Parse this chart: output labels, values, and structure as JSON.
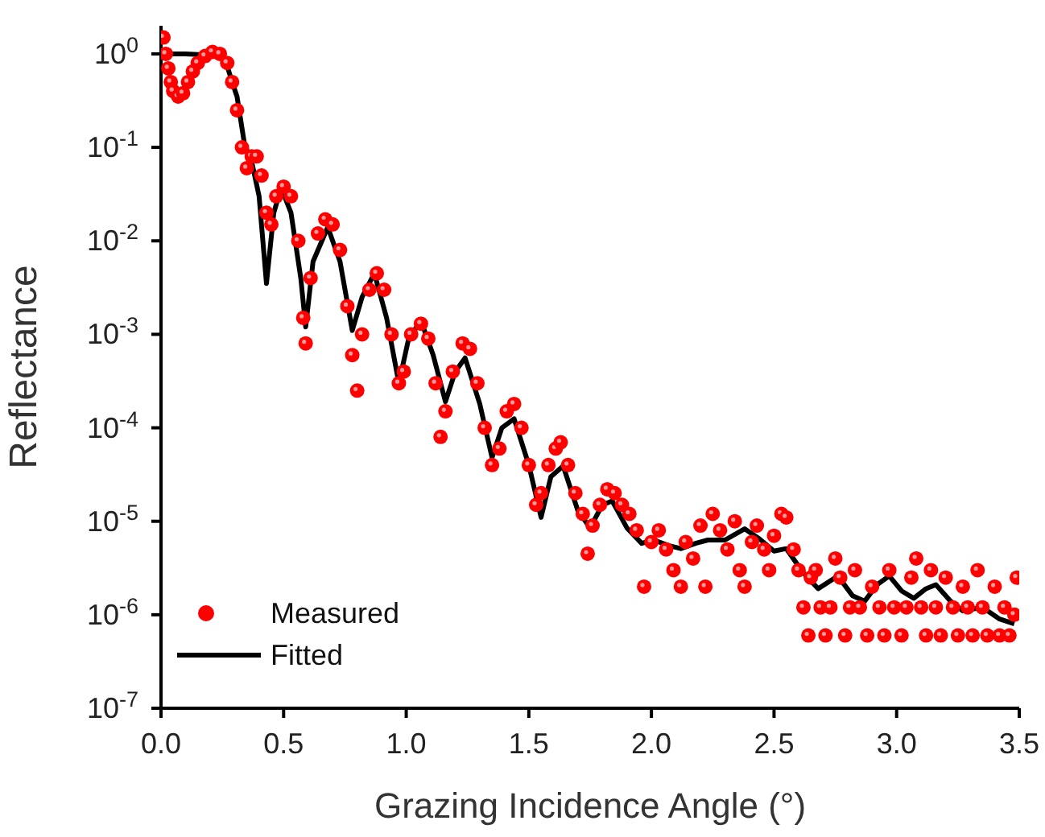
{
  "chart_data": {
    "type": "scatter",
    "xlabel": "Grazing Incidence Angle (°)",
    "ylabel": "Reflectance",
    "log": "y",
    "legend": "bottom left",
    "xlim": [
      0,
      3.5
    ],
    "ylim": [
      1e-07,
      2
    ],
    "xticks": [
      {
        "value": 0,
        "label": "0.0"
      },
      {
        "value": 0.5,
        "label": "0.5"
      },
      {
        "value": 1,
        "label": "1.0"
      },
      {
        "value": 1.5,
        "label": "1.5"
      },
      {
        "value": 2,
        "label": "2.0"
      },
      {
        "value": 2.5,
        "label": "2.5"
      },
      {
        "value": 3,
        "label": "3.0"
      },
      {
        "value": 3.5,
        "label": "3.5"
      }
    ],
    "yticks": [
      {
        "value": 1e-07,
        "label": "10$^{-7}$"
      },
      {
        "value": 1e-06,
        "label": "10$^{-6}$"
      },
      {
        "value": 1e-05,
        "label": "10$^{-5}$"
      },
      {
        "value": 0.0001,
        "label": "10$^{-4}$"
      },
      {
        "value": 0.001,
        "label": "10$^{-3}$"
      },
      {
        "value": 0.01,
        "label": "10$^{-2}$"
      },
      {
        "value": 0.1,
        "label": "10$^{-1}$"
      },
      {
        "value": 1,
        "label": "10$^{0}$"
      }
    ],
    "series": [
      {
        "name": "Measured",
        "marker": "circle",
        "color": "#ff0000",
        "x": [
          0.01,
          0.02,
          0.03,
          0.04,
          0.05,
          0.07,
          0.09,
          0.11,
          0.13,
          0.15,
          0.18,
          0.21,
          0.24,
          0.27,
          0.29,
          0.31,
          0.33,
          0.35,
          0.37,
          0.39,
          0.41,
          0.43,
          0.45,
          0.47,
          0.5,
          0.53,
          0.56,
          0.58,
          0.59,
          0.61,
          0.64,
          0.67,
          0.7,
          0.73,
          0.76,
          0.78,
          0.8,
          0.82,
          0.85,
          0.88,
          0.91,
          0.94,
          0.97,
          0.99,
          1.02,
          1.06,
          1.09,
          1.12,
          1.14,
          1.16,
          1.19,
          1.23,
          1.26,
          1.29,
          1.32,
          1.35,
          1.38,
          1.41,
          1.44,
          1.47,
          1.5,
          1.53,
          1.55,
          1.58,
          1.61,
          1.63,
          1.66,
          1.69,
          1.72,
          1.74,
          1.76,
          1.79,
          1.82,
          1.85,
          1.88,
          1.91,
          1.94,
          1.97,
          2,
          2.03,
          2.06,
          2.09,
          2.12,
          2.14,
          2.17,
          2.2,
          2.22,
          2.25,
          2.28,
          2.31,
          2.34,
          2.36,
          2.38,
          2.41,
          2.43,
          2.46,
          2.48,
          2.5,
          2.53,
          2.55,
          2.58,
          2.6,
          2.62,
          2.64,
          2.65,
          2.67,
          2.69,
          2.71,
          2.73,
          2.75,
          2.77,
          2.79,
          2.81,
          2.83,
          2.85,
          2.88,
          2.9,
          2.93,
          2.95,
          2.97,
          2.99,
          3.02,
          3.04,
          3.06,
          3.08,
          3.1,
          3.12,
          3.14,
          3.16,
          3.18,
          3.2,
          3.23,
          3.25,
          3.27,
          3.29,
          3.31,
          3.33,
          3.35,
          3.37,
          3.4,
          3.42,
          3.44,
          3.46,
          3.48,
          3.49
        ],
        "values": [
          1.5,
          1,
          0.7,
          0.5,
          0.4,
          0.35,
          0.38,
          0.5,
          0.65,
          0.8,
          0.95,
          1.05,
          1,
          0.8,
          0.5,
          0.25,
          0.1,
          0.06,
          0.08,
          0.08,
          0.05,
          0.02,
          0.015,
          0.03,
          0.038,
          0.03,
          0.01,
          0.0015,
          0.0008,
          0.004,
          0.012,
          0.017,
          0.015,
          0.008,
          0.002,
          0.0006,
          0.00025,
          0.001,
          0.003,
          0.0045,
          0.003,
          0.001,
          0.0003,
          0.0004,
          0.001,
          0.0013,
          0.0009,
          0.0003,
          8e-05,
          0.00015,
          0.0004,
          0.0008,
          0.0007,
          0.0003,
          0.0001,
          4e-05,
          6e-05,
          0.00015,
          0.00018,
          0.0001,
          4e-05,
          1.5e-05,
          2e-05,
          4e-05,
          6e-05,
          7e-05,
          4e-05,
          2e-05,
          1.2e-05,
          4.5e-06,
          9e-06,
          1.5e-05,
          2.2e-05,
          2e-05,
          1.5e-05,
          1.2e-05,
          8e-06,
          2e-06,
          6e-06,
          8e-06,
          5e-06,
          3e-06,
          2e-06,
          6e-06,
          4e-06,
          9e-06,
          2e-06,
          1.2e-05,
          8e-06,
          5e-06,
          1e-05,
          3e-06,
          2e-06,
          6e-06,
          9e-06,
          5e-06,
          3e-06,
          7e-06,
          1.2e-05,
          1.1e-05,
          5e-06,
          3e-06,
          1.2e-06,
          6e-07,
          2.5e-06,
          3e-06,
          1.2e-06,
          6e-07,
          1.2e-06,
          4e-06,
          2.5e-06,
          6e-07,
          1.2e-06,
          3e-06,
          1.2e-06,
          6e-07,
          2e-06,
          1.2e-06,
          6e-07,
          3e-06,
          1.2e-06,
          6e-07,
          1.2e-06,
          2.5e-06,
          4e-06,
          1.2e-06,
          6e-07,
          3e-06,
          1.2e-06,
          6e-07,
          2.5e-06,
          1.2e-06,
          6e-07,
          2e-06,
          1.2e-06,
          6e-07,
          3e-06,
          1.2e-06,
          6e-07,
          2e-06,
          6e-07,
          1.2e-06,
          6e-07,
          1e-06,
          2.5e-06
        ]
      },
      {
        "name": "Fitted",
        "type": "line",
        "marker": "none",
        "line_style": "solid",
        "color": "#000000",
        "x": [
          0,
          0.1,
          0.2,
          0.26,
          0.29,
          0.31,
          0.34,
          0.37,
          0.4,
          0.43,
          0.46,
          0.49,
          0.53,
          0.57,
          0.59,
          0.62,
          0.68,
          0.73,
          0.78,
          0.82,
          0.87,
          0.92,
          0.97,
          1.01,
          1.06,
          1.11,
          1.16,
          1.2,
          1.24,
          1.3,
          1.35,
          1.39,
          1.44,
          1.5,
          1.55,
          1.59,
          1.64,
          1.7,
          1.75,
          1.8,
          1.84,
          1.9,
          1.96,
          2.01,
          2.07,
          2.12,
          2.18,
          2.23,
          2.3,
          2.38,
          2.44,
          2.5,
          2.55,
          2.62,
          2.68,
          2.76,
          2.82,
          2.87,
          2.92,
          2.97,
          3.02,
          3.07,
          3.12,
          3.16,
          3.22,
          3.27,
          3.35,
          3.42,
          3.48
        ],
        "values": [
          1,
          1,
          0.97,
          0.9,
          0.5,
          0.35,
          0.11,
          0.07,
          0.03,
          0.0035,
          0.02,
          0.037,
          0.02,
          0.004,
          0.0012,
          0.006,
          0.014,
          0.006,
          0.0011,
          0.0025,
          0.0045,
          0.0015,
          0.0003,
          0.0009,
          0.0014,
          0.0006,
          0.00019,
          0.0004,
          0.00056,
          0.00018,
          4.8e-05,
          0.0001,
          0.000125,
          4e-05,
          1.1e-05,
          3e-05,
          3.9e-05,
          1.3e-05,
          8.5e-06,
          1.5e-05,
          1.65e-05,
          8.5e-06,
          5.8e-06,
          6.3e-06,
          5.5e-06,
          5.1e-06,
          5.8e-06,
          6.3e-06,
          6.3e-06,
          8.3e-06,
          6.5e-06,
          4.8e-06,
          5.1e-06,
          2.8e-06,
          1.9e-06,
          2.6e-06,
          1.6e-06,
          1.4e-06,
          2.1e-06,
          2.6e-06,
          1.8e-06,
          1.5e-06,
          1.9e-06,
          2.1e-06,
          1.4e-06,
          1.1e-06,
          1.2e-06,
          9e-07,
          8e-07
        ]
      }
    ]
  }
}
